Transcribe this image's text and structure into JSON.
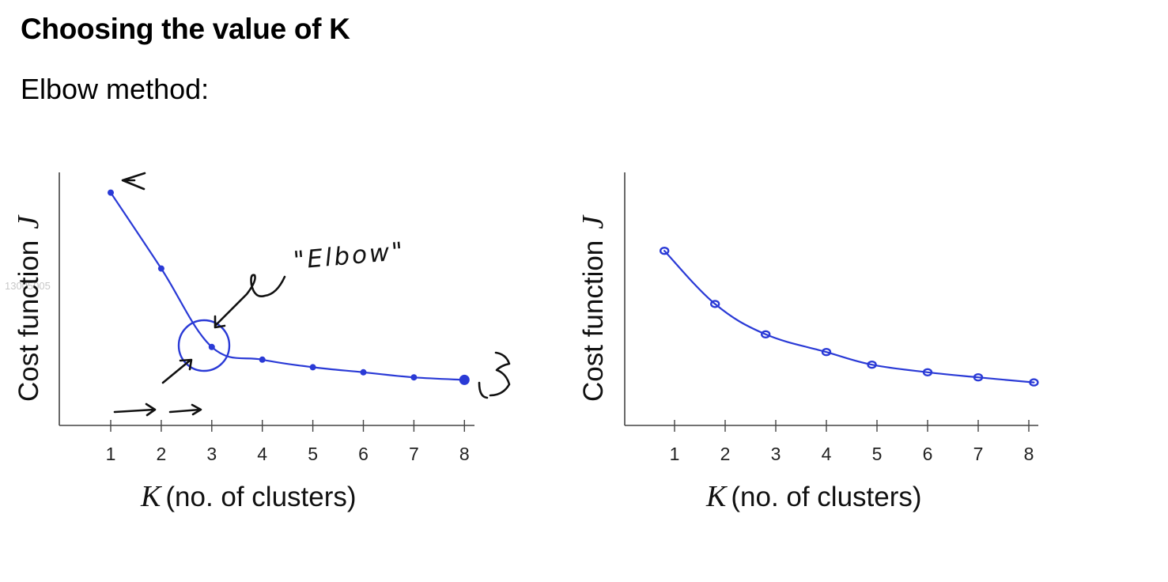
{
  "slide": {
    "title": "Choosing the value of K",
    "subtitle": "Elbow method:",
    "watermark": "13005005"
  },
  "chart_data": [
    {
      "type": "line",
      "x": [
        1,
        2,
        3,
        4,
        5,
        6,
        7,
        8
      ],
      "values": [
        0.92,
        0.62,
        0.31,
        0.26,
        0.23,
        0.21,
        0.19,
        0.18
      ],
      "xlabel": {
        "symbol": "K",
        "text": "(no. of clusters)"
      },
      "ylabel": {
        "text": "Cost function",
        "symbol": "J"
      },
      "xticks": [
        "1",
        "2",
        "3",
        "4",
        "5",
        "6",
        "7",
        "8"
      ],
      "xlim": [
        0,
        8.2
      ],
      "ylim": [
        0,
        1
      ],
      "grid": false,
      "annotations": [
        "\"Elbow\""
      ],
      "colors": {
        "line": "#2a3ad6",
        "ink": "#111111"
      }
    },
    {
      "type": "line",
      "x": [
        0.8,
        1.8,
        2.8,
        4,
        4.9,
        6,
        7,
        8.1
      ],
      "values": [
        0.69,
        0.48,
        0.36,
        0.29,
        0.24,
        0.21,
        0.19,
        0.17
      ],
      "xlabel": {
        "symbol": "K",
        "text": "(no. of clusters)"
      },
      "ylabel": {
        "text": "Cost function",
        "symbol": "J"
      },
      "xticks": [
        "1",
        "2",
        "3",
        "4",
        "5",
        "6",
        "7",
        "8"
      ],
      "xlim": [
        -0.1,
        8.1
      ],
      "ylim": [
        0,
        1
      ],
      "grid": false,
      "colors": {
        "line": "#2a3ad6"
      }
    }
  ]
}
